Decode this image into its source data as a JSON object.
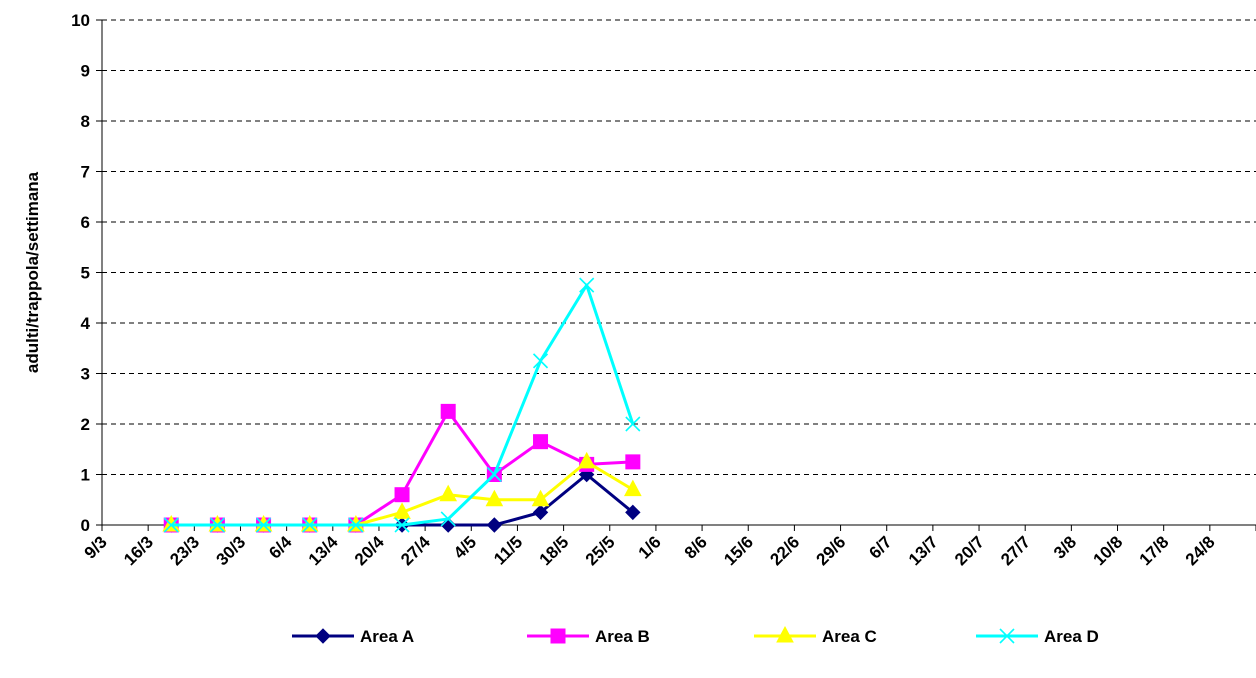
{
  "chart_data": {
    "type": "line",
    "title": "",
    "xlabel": "",
    "ylabel": "adulti/trappola/settimana",
    "ylim": [
      0,
      10
    ],
    "y_ticks": [
      0,
      1,
      2,
      3,
      4,
      5,
      6,
      7,
      8,
      9,
      10
    ],
    "grid": "horizontal dashed",
    "legend_position": "bottom",
    "categories": [
      "9/3",
      "16/3",
      "23/3",
      "30/3",
      "6/4",
      "13/4",
      "20/4",
      "27/4",
      "4/5",
      "11/5",
      "18/5",
      "25/5",
      "1/6",
      "8/6",
      "15/6",
      "22/6",
      "29/6",
      "6/7",
      "13/7",
      "20/7",
      "27/7",
      "3/8",
      "10/8",
      "17/8",
      "24/8"
    ],
    "series": [
      {
        "name": "Area A",
        "color": "#000080",
        "marker": "diamond",
        "x": [
          "16/3",
          "23/3",
          "30/3",
          "6/4",
          "13/4",
          "20/4",
          "27/4",
          "4/5",
          "11/5",
          "18/5",
          "25/5"
        ],
        "values": [
          0,
          0,
          0,
          0,
          0,
          0,
          0,
          0,
          0.25,
          1,
          0.25
        ]
      },
      {
        "name": "Area B",
        "color": "#FF00FF",
        "marker": "square",
        "x": [
          "16/3",
          "23/3",
          "30/3",
          "6/4",
          "13/4",
          "20/4",
          "27/4",
          "4/5",
          "11/5",
          "18/5",
          "25/5"
        ],
        "values": [
          0,
          0,
          0,
          0,
          0,
          0.6,
          2.25,
          1,
          1.65,
          1.2,
          1.25
        ]
      },
      {
        "name": "Area C",
        "color": "#FFFF00",
        "marker": "triangle",
        "x": [
          "16/3",
          "23/3",
          "30/3",
          "6/4",
          "13/4",
          "20/4",
          "27/4",
          "4/5",
          "11/5",
          "18/5",
          "25/5"
        ],
        "values": [
          0,
          0,
          0,
          0,
          0,
          0.25,
          0.6,
          0.5,
          0.5,
          1.25,
          0.7
        ]
      },
      {
        "name": "Area D",
        "color": "#00FFFF",
        "marker": "x",
        "x": [
          "16/3",
          "23/3",
          "30/3",
          "6/4",
          "13/4",
          "20/4",
          "27/4",
          "4/5",
          "11/5",
          "18/5",
          "25/5"
        ],
        "values": [
          0,
          0,
          0,
          0,
          0,
          0,
          0.12,
          1,
          3.25,
          4.75,
          2
        ]
      }
    ]
  }
}
